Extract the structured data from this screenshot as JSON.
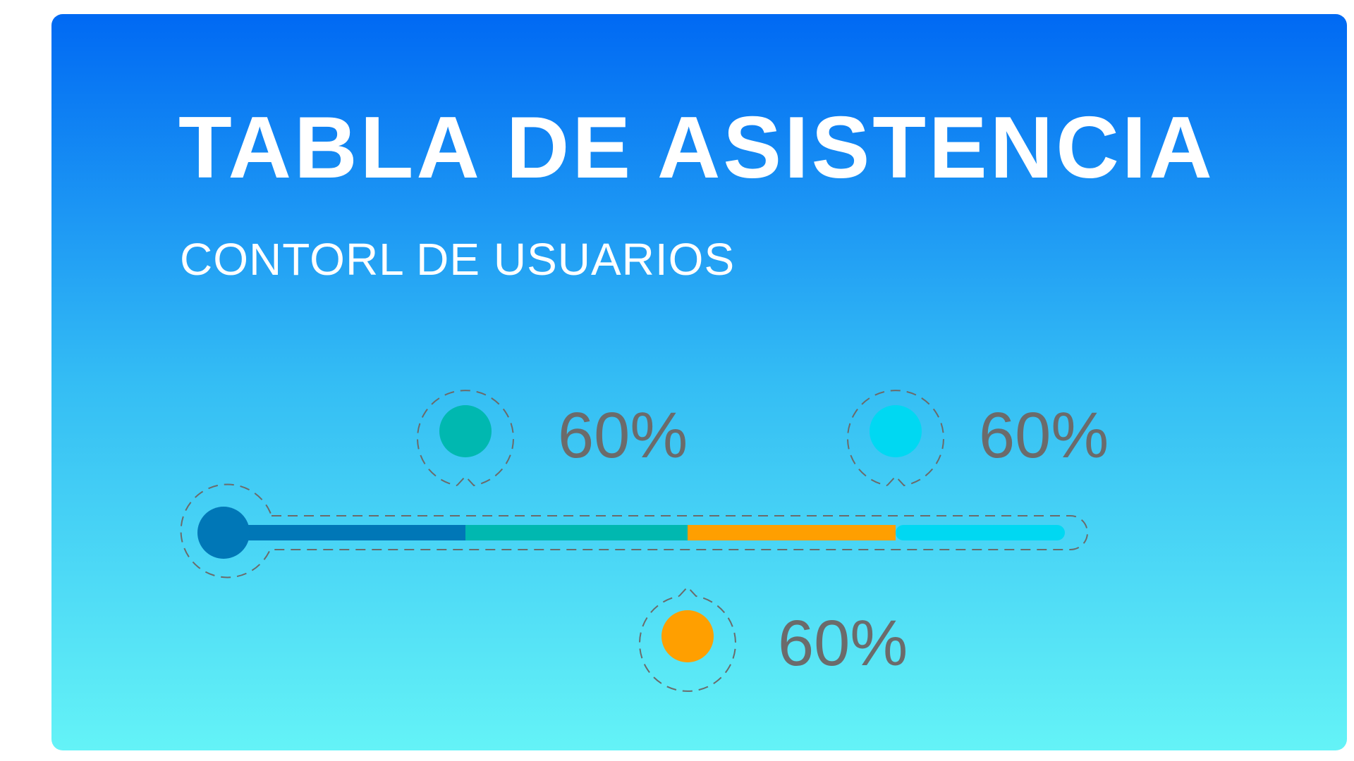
{
  "header": {
    "title": "TABLA DE ASISTENCIA",
    "subtitle": "CONTORL DE USUARIOS"
  },
  "progress": {
    "colors": {
      "start_knob": "#0077b7",
      "segment_1": "#0077b7",
      "segment_2": "#00b8b0",
      "segment_3": "#ff9f00",
      "segment_4": "#00d8f2",
      "dashed_outline": "#6b6b6b",
      "label_text": "#6b6b6b"
    },
    "segments": [
      {
        "color_key": "segment_1"
      },
      {
        "color_key": "segment_2"
      },
      {
        "color_key": "segment_3"
      },
      {
        "color_key": "segment_4"
      }
    ],
    "markers": [
      {
        "id": "marker-teal",
        "color": "#00b8b0",
        "label": "60%"
      },
      {
        "id": "marker-cyan",
        "color": "#00d8f2",
        "label": "60%"
      },
      {
        "id": "marker-orange",
        "color": "#ff9f00",
        "label": "60%"
      }
    ]
  }
}
